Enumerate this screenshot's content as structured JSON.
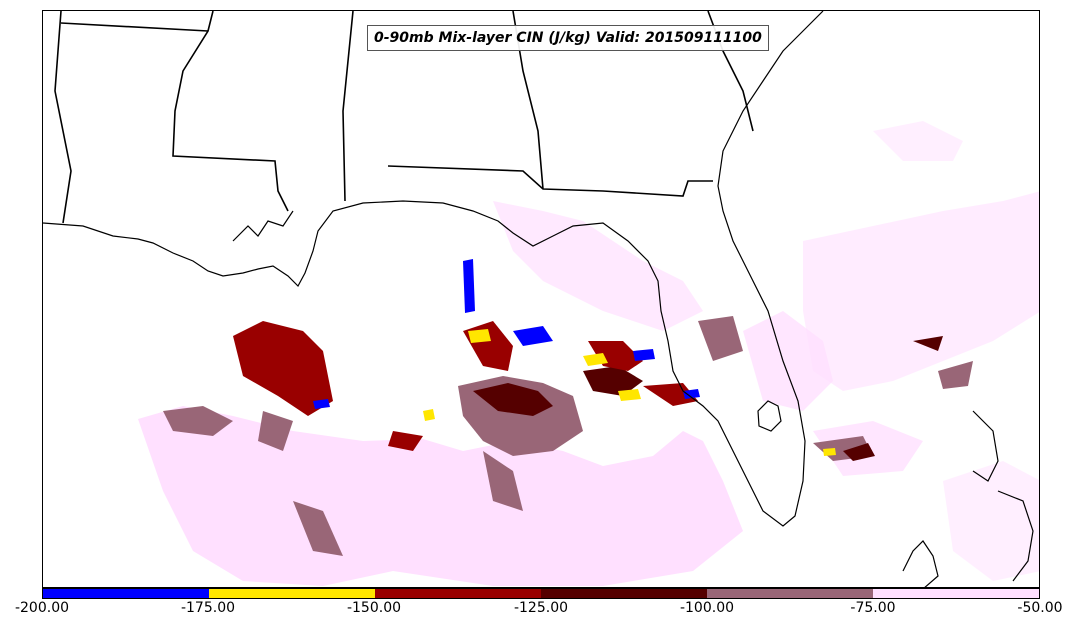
{
  "map": {
    "title": "0-90mb Mix-layer CIN (J/kg) Valid: 201509111100",
    "land_fill": "#ffffff",
    "border_color": "#000000"
  },
  "colorbar": {
    "bins": [
      {
        "from": -200,
        "to": -175,
        "color": "#0000ff"
      },
      {
        "from": -175,
        "to": -150,
        "color": "#ffe600"
      },
      {
        "from": -150,
        "to": -125,
        "color": "#990000"
      },
      {
        "from": -125,
        "to": -100,
        "color": "#550000"
      },
      {
        "from": -100,
        "to": -75,
        "color": "#996677"
      },
      {
        "from": -75,
        "to": -50,
        "color": "#ffe0ff"
      }
    ],
    "ticks": [
      "-200.00",
      "-175.00",
      "-150.00",
      "-125.00",
      "-100.00",
      "-75.00",
      "-50.00"
    ]
  }
}
